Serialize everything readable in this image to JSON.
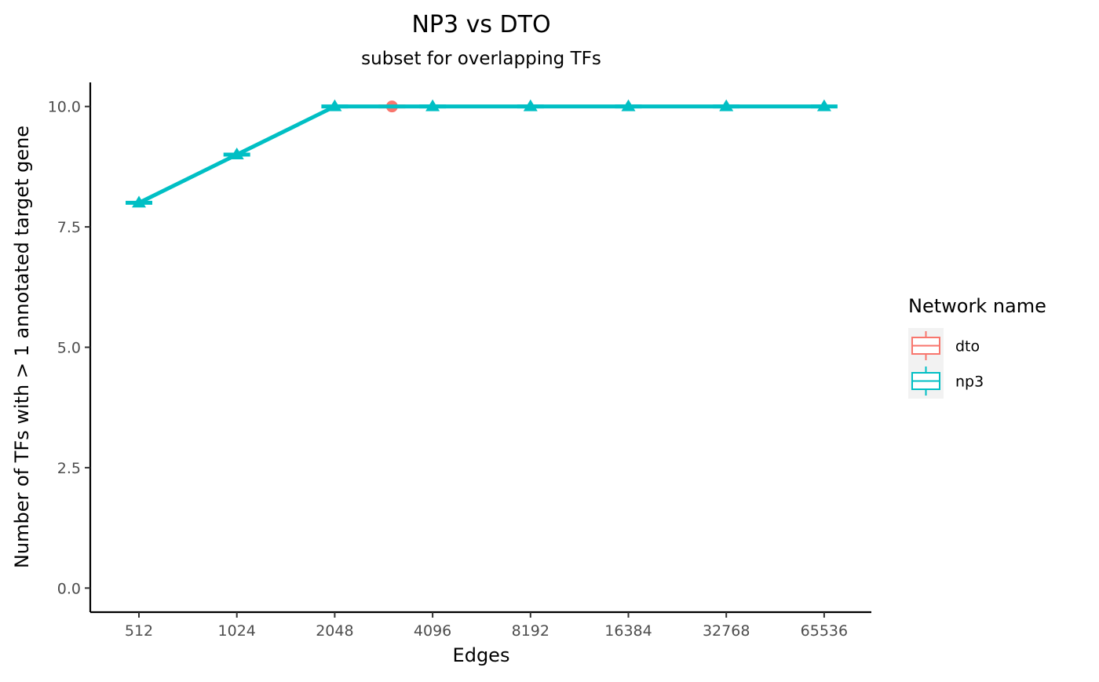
{
  "chart_data": {
    "type": "line",
    "title": "NP3 vs DTO",
    "subtitle": "subset for overlapping TFs",
    "xlabel": "Edges",
    "ylabel": "Number of TFs with > 1 annotated target gene",
    "categories": [
      "512",
      "1024",
      "2048",
      "4096",
      "8192",
      "16384",
      "32768",
      "65536"
    ],
    "y_ticks": [
      "0.0",
      "2.5",
      "5.0",
      "7.5",
      "10.0"
    ],
    "y_tick_values": [
      0,
      2.5,
      5,
      7.5,
      10
    ],
    "ylim": [
      -0.5,
      10.5
    ],
    "grid": false,
    "legend": {
      "title": "Network name",
      "position": "right",
      "entries": [
        {
          "label": "dto",
          "color": "#F8766D"
        },
        {
          "label": "np3",
          "color": "#00BFC4"
        }
      ]
    },
    "series": [
      {
        "name": "dto",
        "color": "#F8766D",
        "marker": "circle",
        "points": [
          {
            "x": 3072,
            "y": 10
          }
        ]
      },
      {
        "name": "np3",
        "color": "#00BFC4",
        "marker": "triangle",
        "points": [
          {
            "x": 512,
            "y": 8
          },
          {
            "x": 1024,
            "y": 9
          },
          {
            "x": 2048,
            "y": 10
          },
          {
            "x": 4096,
            "y": 10
          },
          {
            "x": 8192,
            "y": 10
          },
          {
            "x": 16384,
            "y": 10
          },
          {
            "x": 32768,
            "y": 10
          },
          {
            "x": 65536,
            "y": 10
          }
        ]
      }
    ]
  }
}
